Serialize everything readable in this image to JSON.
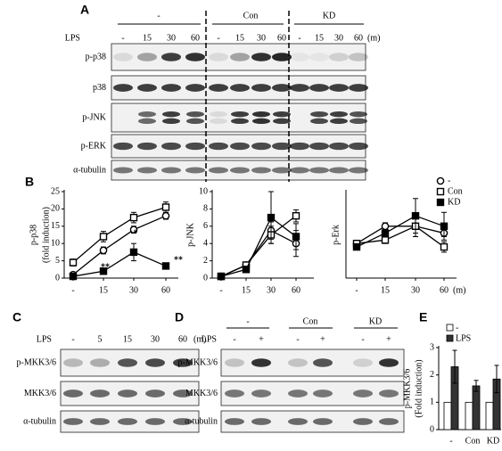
{
  "panel_a": {
    "label": "A",
    "groups": [
      "-",
      "Con",
      "KD"
    ],
    "treatment": "LPS",
    "times": [
      "-",
      "15",
      "30",
      "60"
    ],
    "unit": "(m)",
    "rows": [
      "p-p38",
      "p38",
      "p-JNK",
      "p-ERK",
      "α-tubulin"
    ]
  },
  "panel_b": {
    "label": "B"
  },
  "chart_data": [
    {
      "type": "line",
      "y_label": [
        "p-p38",
        "(fold induction)"
      ],
      "categories": [
        "-",
        "15",
        "30",
        "60"
      ],
      "ylim": [
        0,
        25
      ],
      "yticks": [
        0,
        5,
        10,
        15,
        20,
        25
      ],
      "series": [
        {
          "name": "-",
          "marker": "circle",
          "color": "#000000",
          "fill": "#ffffff",
          "values": [
            1,
            8,
            14,
            18
          ],
          "errors": [
            0.5,
            1,
            1,
            1
          ]
        },
        {
          "name": "Con",
          "marker": "square",
          "color": "#000000",
          "fill": "#ffffff",
          "values": [
            4.5,
            12,
            17.5,
            20.5
          ],
          "errors": [
            1,
            1.5,
            1.5,
            1.5
          ]
        },
        {
          "name": "KD",
          "marker": "square",
          "color": "#000000",
          "fill": "#000000",
          "values": [
            0.5,
            2,
            7.5,
            3.5
          ],
          "errors": [
            0.3,
            0.5,
            2.5,
            0.5
          ]
        }
      ],
      "annotations": [
        "**",
        "*",
        "**"
      ]
    },
    {
      "type": "line",
      "y_label": [
        "p-JNK"
      ],
      "categories": [
        "-",
        "15",
        "30",
        "60"
      ],
      "ylim": [
        0,
        10
      ],
      "yticks": [
        0,
        2,
        4,
        6,
        8,
        10
      ],
      "series": [
        {
          "name": "-",
          "marker": "circle",
          "color": "#000000",
          "fill": "#ffffff",
          "values": [
            0.2,
            1.5,
            5.5,
            4
          ],
          "errors": [
            0.1,
            0.2,
            1,
            1.5
          ]
        },
        {
          "name": "Con",
          "marker": "square",
          "color": "#000000",
          "fill": "#ffffff",
          "values": [
            0.2,
            1.5,
            5,
            7.2
          ],
          "errors": [
            0.1,
            0.2,
            1,
            0.7
          ]
        },
        {
          "name": "KD",
          "marker": "square",
          "color": "#000000",
          "fill": "#000000",
          "values": [
            0.2,
            1,
            7,
            4.8
          ],
          "errors": [
            0.1,
            0.2,
            3,
            1.5
          ]
        }
      ]
    },
    {
      "type": "line",
      "y_label": [
        "p-Erk"
      ],
      "categories": [
        "-",
        "15",
        "30",
        "60"
      ],
      "x_unit": "(m)",
      "ylim": [
        0,
        2.5
      ],
      "legend": "upper right",
      "series": [
        {
          "name": "-",
          "marker": "circle",
          "color": "#000000",
          "fill": "#ffffff",
          "values": [
            1,
            1.5,
            1.5,
            1.3
          ],
          "errors": [
            0.05,
            0.1,
            0.3,
            0.1
          ]
        },
        {
          "name": "Con",
          "marker": "square",
          "color": "#000000",
          "fill": "#ffffff",
          "values": [
            1,
            1.1,
            1.5,
            0.9
          ],
          "errors": [
            0.05,
            0.1,
            0.3,
            0.15
          ]
        },
        {
          "name": "KD",
          "marker": "square",
          "color": "#000000",
          "fill": "#000000",
          "values": [
            0.9,
            1.3,
            1.8,
            1.5
          ],
          "errors": [
            0.05,
            0.1,
            0.5,
            0.4
          ]
        }
      ]
    },
    {
      "type": "bar",
      "y_label": [
        "p-MKK3/6",
        "(Fold induction)"
      ],
      "categories": [
        "-",
        "Con",
        "KD"
      ],
      "ylim": [
        0,
        3
      ],
      "yticks": [
        0,
        1,
        2,
        3
      ],
      "legend": "upper right",
      "series": [
        {
          "name": "-",
          "color": "#000000",
          "fill": "#ffffff",
          "values": [
            1,
            1,
            1
          ]
        },
        {
          "name": "LPS",
          "color": "#000000",
          "fill": "#333333",
          "values": [
            2.3,
            1.6,
            1.85
          ],
          "errors": [
            0.6,
            0.2,
            0.5
          ]
        }
      ]
    }
  ],
  "panel_c": {
    "label": "C",
    "treatment": "LPS",
    "times": [
      "-",
      "5",
      "15",
      "30",
      "60"
    ],
    "unit": "(m)",
    "rows": [
      "p-MKK3/6",
      "MKK3/6",
      "α-tubulin"
    ]
  },
  "panel_d": {
    "label": "D",
    "groups": [
      "-",
      "Con",
      "KD"
    ],
    "treatment": "LPS",
    "lps": [
      "-",
      "+"
    ],
    "rows": [
      "p-MKK3/6",
      "MKK3/6",
      "α-tubulin"
    ]
  },
  "panel_e": {
    "label": "E"
  }
}
